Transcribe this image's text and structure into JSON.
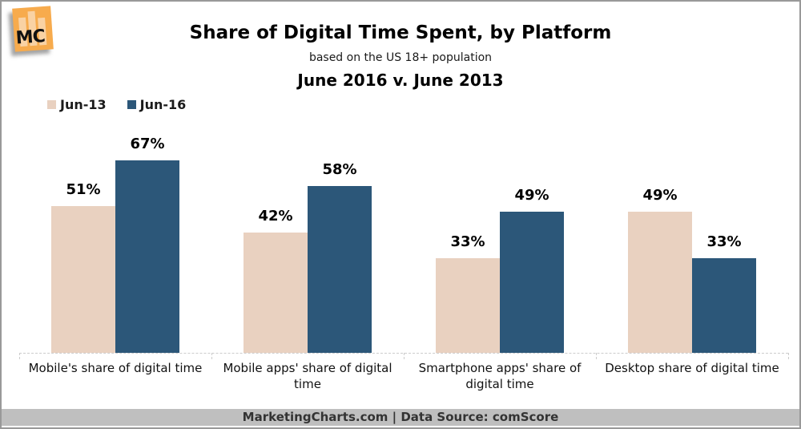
{
  "logo": {
    "text": "MC"
  },
  "header": {
    "title": "Share of Digital Time Spent, by Platform",
    "subtitle": "based on the US 18+ population",
    "period": "June 2016 v. June 2013"
  },
  "legend": [
    {
      "label": "Jun-13",
      "color": "#e9d1c0"
    },
    {
      "label": "Jun-16",
      "color": "#2c5779"
    }
  ],
  "chart_data": {
    "type": "bar",
    "title": "Share of Digital Time Spent, by Platform",
    "subtitle": "based on the US 18+ population",
    "comparison_label": "June 2016 v. June 2013",
    "categories": [
      "Mobile's share of digital time",
      "Mobile apps' share of digital time",
      "Smartphone apps' share of digital time",
      "Desktop share of digital time"
    ],
    "series": [
      {
        "name": "Jun-13",
        "color": "#e9d1c0",
        "values": [
          51,
          42,
          33,
          49
        ]
      },
      {
        "name": "Jun-16",
        "color": "#2c5779",
        "values": [
          67,
          58,
          49,
          33
        ]
      }
    ],
    "value_suffix": "%",
    "ylim": [
      0,
      75
    ],
    "grid": false,
    "legend_position": "top-left"
  },
  "footer": {
    "text": "MarketingCharts.com | Data Source: comScore"
  },
  "colors": {
    "jun13_bar": "#e9d1c0",
    "jun16_bar": "#2c5779",
    "footer_bg": "#bfbfbf",
    "card_border": "#999999",
    "logo_orange": "#f7ab4d"
  }
}
